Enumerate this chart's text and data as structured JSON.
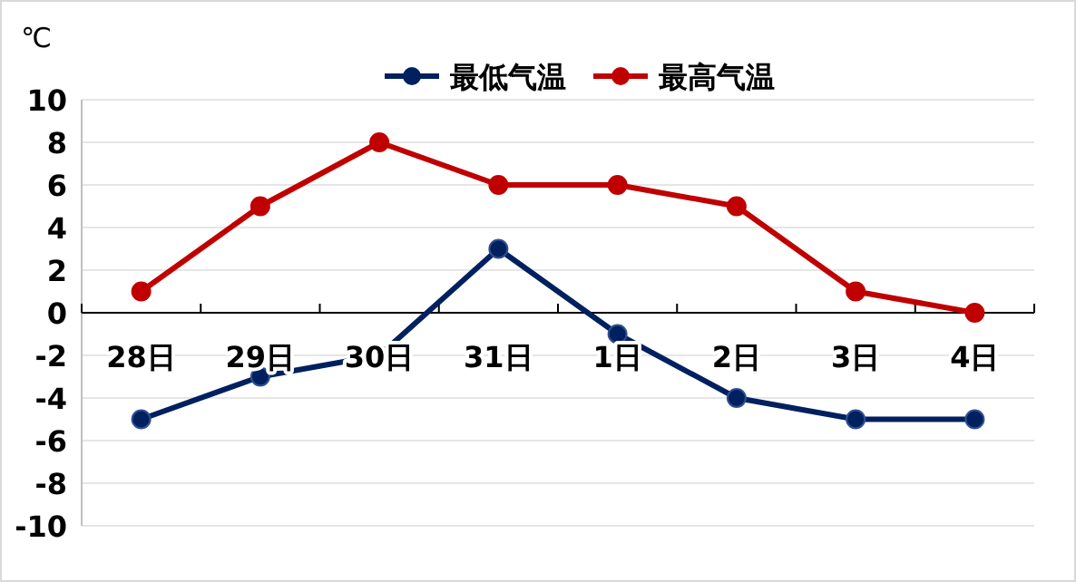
{
  "chart_data": {
    "type": "line",
    "ylabel": "℃",
    "categories": [
      "28日",
      "29日",
      "30日",
      "31日",
      "1日",
      "2日",
      "3日",
      "4日"
    ],
    "series": [
      {
        "name": "最低气温",
        "color": "#002060",
        "values": [
          -5,
          -3,
          -2,
          3,
          -1,
          -4,
          -5,
          -5
        ]
      },
      {
        "name": "最高气温",
        "color": "#c00000",
        "values": [
          1,
          5,
          8,
          6,
          6,
          5,
          1,
          0
        ]
      }
    ],
    "ylim": [
      -10,
      10
    ],
    "yticks": [
      -10,
      -8,
      -6,
      -4,
      -2,
      0,
      2,
      4,
      6,
      8,
      10
    ],
    "grid": "y",
    "legend": "top",
    "marker": "circle",
    "line_style": "solid"
  }
}
